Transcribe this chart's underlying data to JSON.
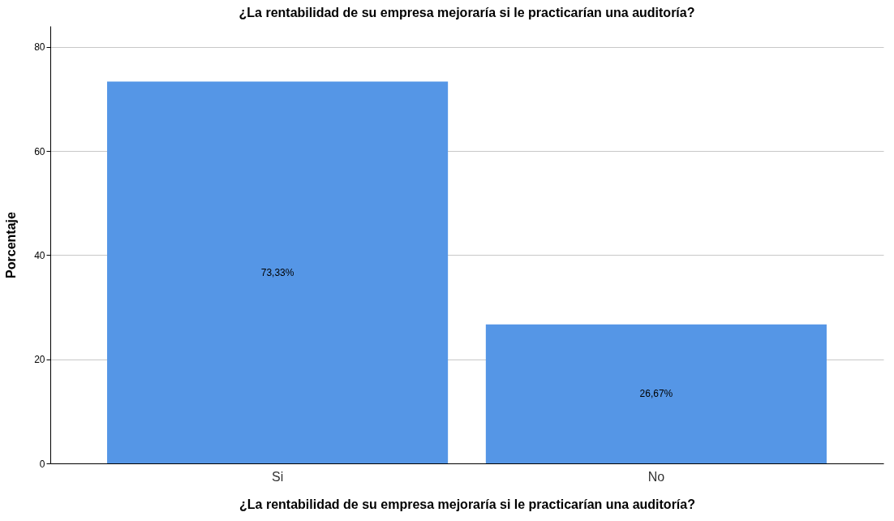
{
  "chart_data": {
    "type": "bar",
    "title": "¿La rentabilidad de su empresa mejoraría si le practicarían una auditoría?",
    "xlabel": "¿La rentabilidad de su empresa mejoraría si le practicarían una auditoría?",
    "ylabel": "Porcentaje",
    "categories": [
      "Si",
      "No"
    ],
    "values": [
      73.33,
      26.67
    ],
    "value_labels": [
      "73,33%",
      "26,67%"
    ],
    "color": "#5596e6",
    "ylim": [
      0,
      84
    ],
    "yticks": [
      0,
      20,
      40,
      60,
      80
    ],
    "grid": "y"
  }
}
